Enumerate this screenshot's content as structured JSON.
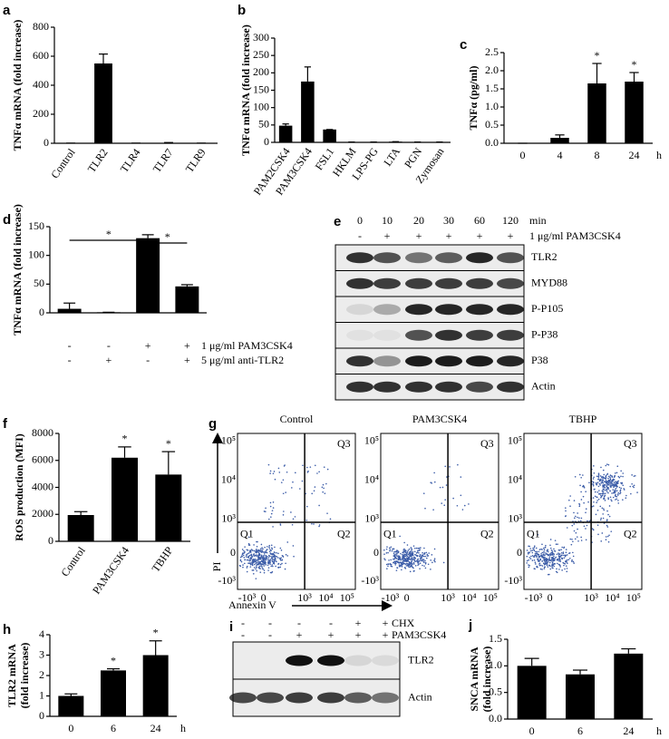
{
  "chart_data": [
    {
      "type": "bar",
      "letter": "a",
      "y_label": [
        "TNFα mRNA (fold increase)"
      ],
      "categories": [
        "Control",
        "TLR2",
        "TLR4",
        "TLR7",
        "TLR9"
      ],
      "values": [
        1,
        550,
        1,
        3,
        1
      ],
      "errors": [
        0,
        65,
        0,
        2,
        0
      ],
      "color": "#000000",
      "ylim": [
        0,
        800
      ],
      "yticks": [
        0,
        200,
        400,
        600,
        800
      ]
    },
    {
      "type": "bar",
      "letter": "b",
      "y_label": [
        "TNFα mRNA (fold increase)"
      ],
      "categories": [
        "PAM2CSK4",
        "PAM3CSK4",
        "FSL1",
        "HKLM",
        "LPS-PG",
        "LTA",
        "PGN",
        "Zymosan"
      ],
      "values": [
        48,
        175,
        37,
        1,
        1,
        2,
        1,
        1
      ],
      "errors": [
        5,
        42,
        0,
        0,
        0,
        0,
        0,
        0
      ],
      "color": "#000000",
      "ylim": [
        0,
        300
      ],
      "yticks": [
        0,
        50,
        100,
        150,
        200,
        250,
        300
      ]
    },
    {
      "type": "bar",
      "letter": "c",
      "y_label": [
        "TNFα (pg/ml)"
      ],
      "categories": [
        "0",
        "4",
        "8",
        "24"
      ],
      "x_unit": "h",
      "values": [
        0,
        0.15,
        1.65,
        1.7
      ],
      "errors": [
        0,
        0.08,
        0.55,
        0.25
      ],
      "stars": [
        null,
        null,
        "*",
        "*"
      ],
      "color": "#000000",
      "ylim": [
        0,
        2.5
      ],
      "yticks": [
        {
          "value": 0,
          "label": "0.0"
        },
        0.5,
        {
          "value": 1,
          "label": "1.0"
        },
        1.5,
        {
          "value": 2,
          "label": "2.0"
        },
        2.5
      ]
    },
    {
      "type": "bar",
      "letter": "d",
      "y_label": [
        "TNFα mRNA (fold increase)"
      ],
      "values": [
        7,
        1,
        130,
        46
      ],
      "errors": [
        10,
        0,
        6,
        3
      ],
      "color": "#000000",
      "ylim": [
        0,
        150
      ],
      "yticks": [
        0,
        50,
        100,
        150
      ],
      "treatments": [
        {
          "label": "1 μg/ml PAM3CSK4",
          "signs": [
            "-",
            "-",
            "+",
            "+"
          ]
        },
        {
          "label": "5 μg/ml anti-TLR2",
          "signs": [
            "-",
            "+",
            "-",
            "+"
          ]
        }
      ],
      "brackets": [
        {
          "from": 0,
          "to": 2,
          "label": "*"
        },
        {
          "from": 2,
          "to": 3,
          "label": "*"
        }
      ]
    },
    {
      "type": "bar",
      "letter": "f",
      "y_label": [
        "ROS production (MFI)"
      ],
      "categories": [
        "Control",
        "PAM3CSK4",
        "TBHP"
      ],
      "values": [
        1950,
        6200,
        4950
      ],
      "errors": [
        250,
        800,
        1700
      ],
      "stars": [
        null,
        "*",
        "*"
      ],
      "color": "#000000",
      "ylim": [
        0,
        8000
      ],
      "yticks": [
        0,
        2000,
        4000,
        6000,
        8000
      ]
    },
    {
      "type": "bar",
      "letter": "h",
      "y_label": [
        "TLR2 mRNA",
        "(fold increase)"
      ],
      "categories": [
        "0",
        "6",
        "24"
      ],
      "x_unit": "h",
      "values": [
        1.0,
        2.25,
        3.0
      ],
      "errors": [
        0.1,
        0.08,
        0.7
      ],
      "stars": [
        null,
        "*",
        "*"
      ],
      "color": "#000000",
      "ylim": [
        0,
        4
      ],
      "yticks": [
        0,
        1,
        2,
        3,
        4
      ]
    },
    {
      "type": "bar",
      "letter": "j",
      "y_label": [
        "SNCA mRNA",
        "(fold increase)"
      ],
      "categories": [
        "0",
        "6",
        "24"
      ],
      "x_unit": "h",
      "values": [
        1.0,
        0.84,
        1.23
      ],
      "errors": [
        0.14,
        0.08,
        0.09
      ],
      "color": "#000000",
      "ylim": [
        0,
        1.5
      ],
      "yticks": [
        {
          "value": 0,
          "label": "0.0"
        },
        0.5,
        {
          "value": 1,
          "label": "1.0"
        },
        1.5
      ]
    }
  ],
  "panel_e": {
    "letter": "e",
    "times": [
      "0",
      "10",
      "20",
      "30",
      "60",
      "120"
    ],
    "time_unit": "min",
    "treatment": {
      "label": "1 μg/ml PAM3CSK4",
      "signs": [
        "-",
        "+",
        "+",
        "+",
        "+",
        "+"
      ]
    },
    "bands": [
      "TLR2",
      "MYD88",
      "P-P105",
      "P-P38",
      "P38",
      "Actin"
    ]
  },
  "panel_g": {
    "letter": "g",
    "plots": [
      "Control",
      "PAM3CSK4",
      "TBHP"
    ],
    "quadrants": [
      "Q1",
      "Q2",
      "Q3"
    ],
    "x_label": "Annexin V",
    "y_label": "PI",
    "x_ticks": [
      "-10³",
      "0",
      "10³",
      "10⁴",
      "10⁵"
    ],
    "y_ticks": [
      "10⁵",
      "10⁴",
      "10³",
      "0",
      "-10³"
    ]
  },
  "panel_i": {
    "letter": "i",
    "treatments": [
      {
        "label": "CHX",
        "signs": [
          "-",
          "-",
          "-",
          "-",
          "+",
          "+"
        ]
      },
      {
        "label": "PAM3CSK4",
        "signs": [
          "-",
          "-",
          "+",
          "+",
          "+",
          "+"
        ]
      }
    ],
    "bands": [
      "TLR2",
      "Actin"
    ]
  }
}
